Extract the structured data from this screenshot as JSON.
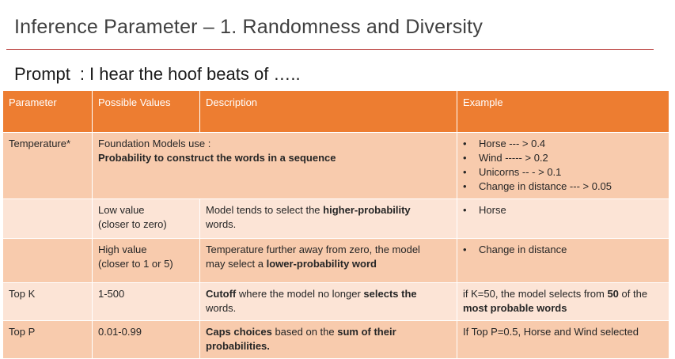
{
  "title": "Inference Parameter – 1. Randomness and Diversity",
  "prompt": {
    "label": "Prompt",
    "sep": ":",
    "text": "I hear the hoof beats of ….."
  },
  "table": {
    "headers": [
      "Parameter",
      "Possible Values",
      "Description",
      "Example"
    ],
    "temperature": {
      "param": "Temperature*",
      "lead": "Foundation Models use :",
      "desc": "Probability to construct the words in a sequence",
      "examples": [
        "Horse --- > 0.4",
        "Wind ----- > 0.2",
        "Unicorns -- - > 0.1",
        "Change in distance --- > 0.05"
      ]
    },
    "low": {
      "value_1": "Low value",
      "value_2": "(closer to zero)",
      "desc_a": "Model tends to select the ",
      "desc_b": "higher-probability",
      "desc_c": "words.",
      "example": "Horse"
    },
    "high": {
      "value_1": "High value",
      "value_2": "(closer to 1 or 5)",
      "desc_a": "Temperature further away from zero, the model",
      "desc_b": "may select a ",
      "desc_c": "lower-probability word",
      "example": "Change in distance"
    },
    "topk": {
      "param": "Top K",
      "value": "1-500",
      "desc_a": "Cutoff",
      "desc_b": " where the model no longer ",
      "desc_c": "selects the",
      "desc_d": "words.",
      "ex_a": "if K=50, the model selects from ",
      "ex_b": "50",
      "ex_c": " of the",
      "ex_d": "most probable words"
    },
    "topp": {
      "param": "Top P",
      "value": "0.01-0.99",
      "desc_a": "Caps choices",
      "desc_b": " based on the ",
      "desc_c": "sum of their",
      "desc_d": "probabilities.",
      "example": "If Top P=0.5, Horse and Wind selected"
    }
  }
}
